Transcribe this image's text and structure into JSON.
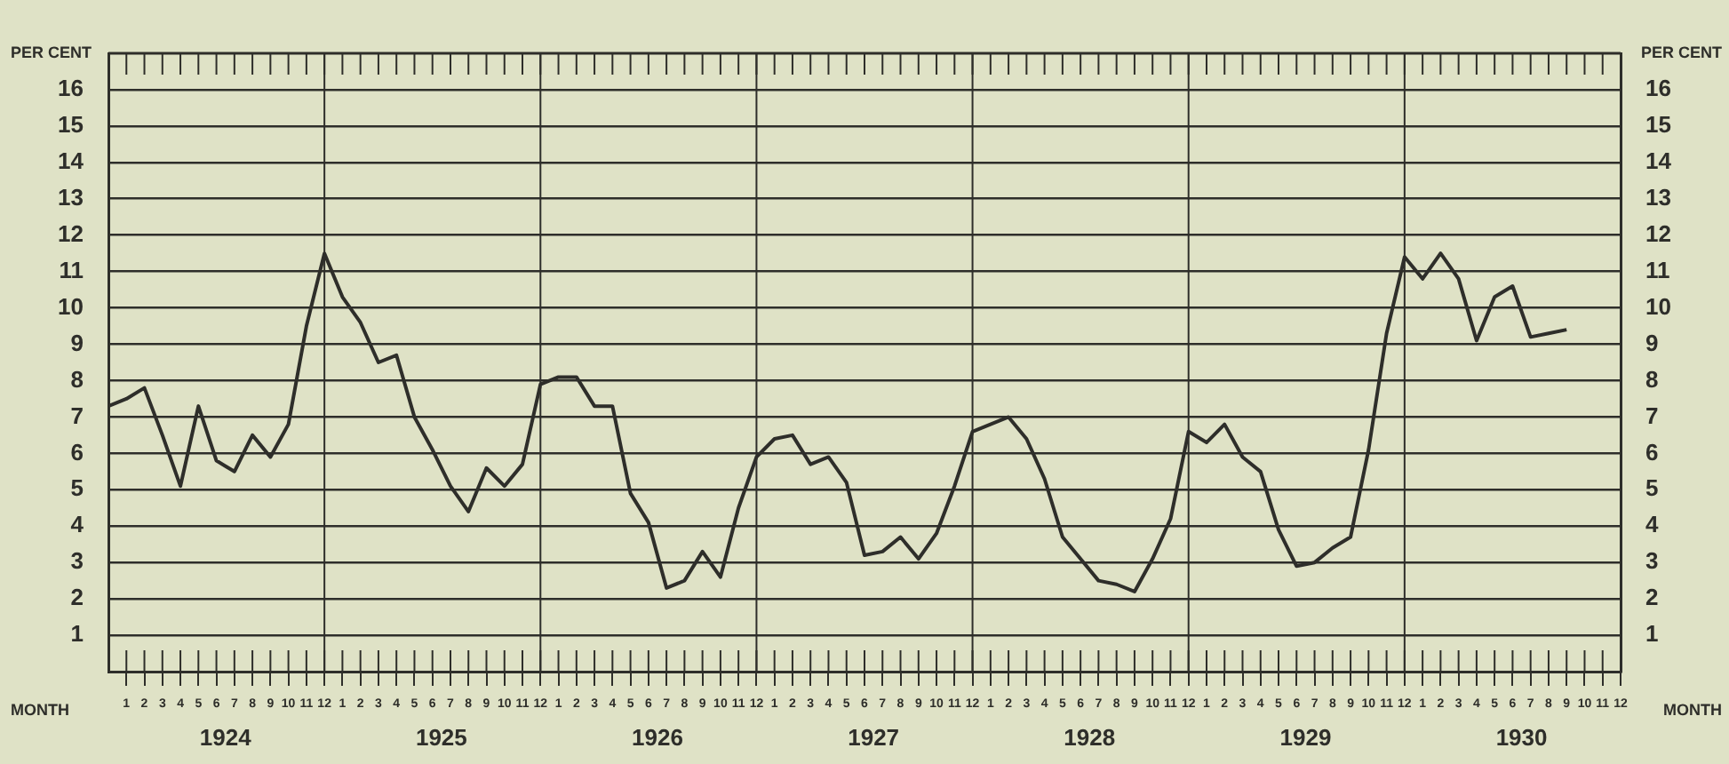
{
  "chart_data": {
    "type": "line",
    "xlabel": "MONTH",
    "ylabel": "PER CENT",
    "y2label": "PER CENT",
    "x": [
      "1923-12",
      "1924-01",
      "1924-02",
      "1924-03",
      "1924-04",
      "1924-05",
      "1924-06",
      "1924-07",
      "1924-08",
      "1924-09",
      "1924-10",
      "1924-11",
      "1924-12",
      "1925-01",
      "1925-02",
      "1925-03",
      "1925-04",
      "1925-05",
      "1925-06",
      "1925-07",
      "1925-08",
      "1925-09",
      "1925-10",
      "1925-11",
      "1925-12",
      "1926-01",
      "1926-02",
      "1926-03",
      "1926-04",
      "1926-05",
      "1926-06",
      "1926-07",
      "1926-08",
      "1926-09",
      "1926-10",
      "1926-11",
      "1926-12",
      "1927-01",
      "1927-02",
      "1927-03",
      "1927-04",
      "1927-05",
      "1927-06",
      "1927-07",
      "1927-08",
      "1927-09",
      "1927-10",
      "1927-11",
      "1927-12",
      "1928-01",
      "1928-02",
      "1928-03",
      "1928-04",
      "1928-05",
      "1928-06",
      "1928-07",
      "1928-08",
      "1928-09",
      "1928-10",
      "1928-11",
      "1928-12",
      "1929-01",
      "1929-02",
      "1929-03",
      "1929-04",
      "1929-05",
      "1929-06",
      "1929-07",
      "1929-08",
      "1929-09",
      "1929-10",
      "1929-11",
      "1929-12",
      "1930-01",
      "1930-02",
      "1930-03",
      "1930-04",
      "1930-05",
      "1930-06",
      "1930-07",
      "1930-08",
      "1930-09"
    ],
    "series": [
      {
        "color": "#2e2e2a",
        "values": [
          7.3,
          7.5,
          7.8,
          6.5,
          5.1,
          7.3,
          5.8,
          5.5,
          6.5,
          5.9,
          6.8,
          9.5,
          11.5,
          10.3,
          9.6,
          8.5,
          8.7,
          7.0,
          6.1,
          5.1,
          4.4,
          5.6,
          5.1,
          5.7,
          7.9,
          8.1,
          8.1,
          7.3,
          7.3,
          4.9,
          4.1,
          2.3,
          2.5,
          3.3,
          2.6,
          4.5,
          5.9,
          6.4,
          6.5,
          5.7,
          5.9,
          5.2,
          3.2,
          3.3,
          3.7,
          3.1,
          3.8,
          5.1,
          6.6,
          6.8,
          7.0,
          6.4,
          5.3,
          3.7,
          3.1,
          2.5,
          2.4,
          2.2,
          3.1,
          4.2,
          6.6,
          6.3,
          6.8,
          5.9,
          5.5,
          3.9,
          2.9,
          3.0,
          3.4,
          3.7,
          6.1,
          9.3,
          11.4,
          10.8,
          11.5,
          10.8,
          9.1,
          10.3,
          10.6,
          9.2,
          9.3,
          9.4
        ]
      }
    ],
    "xlim": [
      "1923-12",
      "1930-12"
    ],
    "xticks": [
      {
        "value": "1924-01",
        "label": "1"
      },
      {
        "value": "1924-02",
        "label": "2"
      },
      {
        "value": "1924-03",
        "label": "3"
      },
      {
        "value": "1924-04",
        "label": "4"
      },
      {
        "value": "1924-05",
        "label": "5"
      },
      {
        "value": "1924-06",
        "label": "6"
      },
      {
        "value": "1924-07",
        "label": "7"
      },
      {
        "value": "1924-08",
        "label": "8"
      },
      {
        "value": "1924-09",
        "label": "9"
      },
      {
        "value": "1924-10",
        "label": "10"
      },
      {
        "value": "1924-11",
        "label": "11"
      },
      {
        "value": "1924-12",
        "label": "12"
      },
      {
        "value": "1925-01",
        "label": "1"
      },
      {
        "value": "1925-02",
        "label": "2"
      },
      {
        "value": "1925-03",
        "label": "3"
      },
      {
        "value": "1925-04",
        "label": "4"
      },
      {
        "value": "1925-05",
        "label": "5"
      },
      {
        "value": "1925-06",
        "label": "6"
      },
      {
        "value": "1925-07",
        "label": "7"
      },
      {
        "value": "1925-08",
        "label": "8"
      },
      {
        "value": "1925-09",
        "label": "9"
      },
      {
        "value": "1925-10",
        "label": "10"
      },
      {
        "value": "1925-11",
        "label": "11"
      },
      {
        "value": "1925-12",
        "label": "12"
      },
      {
        "value": "1926-01",
        "label": "1"
      },
      {
        "value": "1926-02",
        "label": "2"
      },
      {
        "value": "1926-03",
        "label": "3"
      },
      {
        "value": "1926-04",
        "label": "4"
      },
      {
        "value": "1926-05",
        "label": "5"
      },
      {
        "value": "1926-06",
        "label": "6"
      },
      {
        "value": "1926-07",
        "label": "7"
      },
      {
        "value": "1926-08",
        "label": "8"
      },
      {
        "value": "1926-09",
        "label": "9"
      },
      {
        "value": "1926-10",
        "label": "10"
      },
      {
        "value": "1926-11",
        "label": "11"
      },
      {
        "value": "1926-12",
        "label": "12"
      },
      {
        "value": "1927-01",
        "label": "1"
      },
      {
        "value": "1927-02",
        "label": "2"
      },
      {
        "value": "1927-03",
        "label": "3"
      },
      {
        "value": "1927-04",
        "label": "4"
      },
      {
        "value": "1927-05",
        "label": "5"
      },
      {
        "value": "1927-06",
        "label": "6"
      },
      {
        "value": "1927-07",
        "label": "7"
      },
      {
        "value": "1927-08",
        "label": "8"
      },
      {
        "value": "1927-09",
        "label": "9"
      },
      {
        "value": "1927-10",
        "label": "10"
      },
      {
        "value": "1927-11",
        "label": "11"
      },
      {
        "value": "1927-12",
        "label": "12"
      },
      {
        "value": "1928-01",
        "label": "1"
      },
      {
        "value": "1928-02",
        "label": "2"
      },
      {
        "value": "1928-03",
        "label": "3"
      },
      {
        "value": "1928-04",
        "label": "4"
      },
      {
        "value": "1928-05",
        "label": "5"
      },
      {
        "value": "1928-06",
        "label": "6"
      },
      {
        "value": "1928-07",
        "label": "7"
      },
      {
        "value": "1928-08",
        "label": "8"
      },
      {
        "value": "1928-09",
        "label": "9"
      },
      {
        "value": "1928-10",
        "label": "10"
      },
      {
        "value": "1928-11",
        "label": "11"
      },
      {
        "value": "1928-12",
        "label": "12"
      },
      {
        "value": "1929-01",
        "label": "1"
      },
      {
        "value": "1929-02",
        "label": "2"
      },
      {
        "value": "1929-03",
        "label": "3"
      },
      {
        "value": "1929-04",
        "label": "4"
      },
      {
        "value": "1929-05",
        "label": "5"
      },
      {
        "value": "1929-06",
        "label": "6"
      },
      {
        "value": "1929-07",
        "label": "7"
      },
      {
        "value": "1929-08",
        "label": "8"
      },
      {
        "value": "1929-09",
        "label": "9"
      },
      {
        "value": "1929-10",
        "label": "10"
      },
      {
        "value": "1929-11",
        "label": "11"
      },
      {
        "value": "1929-12",
        "label": "12"
      },
      {
        "value": "1930-01",
        "label": "1"
      },
      {
        "value": "1930-02",
        "label": "2"
      },
      {
        "value": "1930-03",
        "label": "3"
      },
      {
        "value": "1930-04",
        "label": "4"
      },
      {
        "value": "1930-05",
        "label": "5"
      },
      {
        "value": "1930-06",
        "label": "6"
      },
      {
        "value": "1930-07",
        "label": "7"
      },
      {
        "value": "1930-08",
        "label": "8"
      },
      {
        "value": "1930-09",
        "label": "9"
      },
      {
        "value": "1930-10",
        "label": "10"
      },
      {
        "value": "1930-11",
        "label": "11"
      },
      {
        "value": "1930-12",
        "label": "12"
      }
    ],
    "ylim": [
      0,
      17
    ],
    "yticks": [
      1,
      2,
      3,
      4,
      5,
      6,
      7,
      8,
      9,
      10,
      11,
      12,
      13,
      14,
      15,
      16
    ],
    "y2lim": [
      0,
      17
    ],
    "y2ticks": [
      1,
      2,
      3,
      4,
      5,
      6,
      7,
      8,
      9,
      10,
      11,
      12,
      13,
      14,
      15,
      16
    ],
    "ref_lines": [
      {
        "axis": "x",
        "value": "1924-12"
      },
      {
        "axis": "x",
        "value": "1925-12"
      },
      {
        "axis": "x",
        "value": "1926-12"
      },
      {
        "axis": "x",
        "value": "1927-12"
      },
      {
        "axis": "x",
        "value": "1928-12"
      },
      {
        "axis": "x",
        "value": "1929-12"
      }
    ],
    "grid": "y",
    "legend": false,
    "marker": "none",
    "line_style": "solid",
    "annotations": [
      "1924",
      "1925",
      "1926",
      "1927",
      "1928",
      "1929",
      "1930"
    ]
  }
}
